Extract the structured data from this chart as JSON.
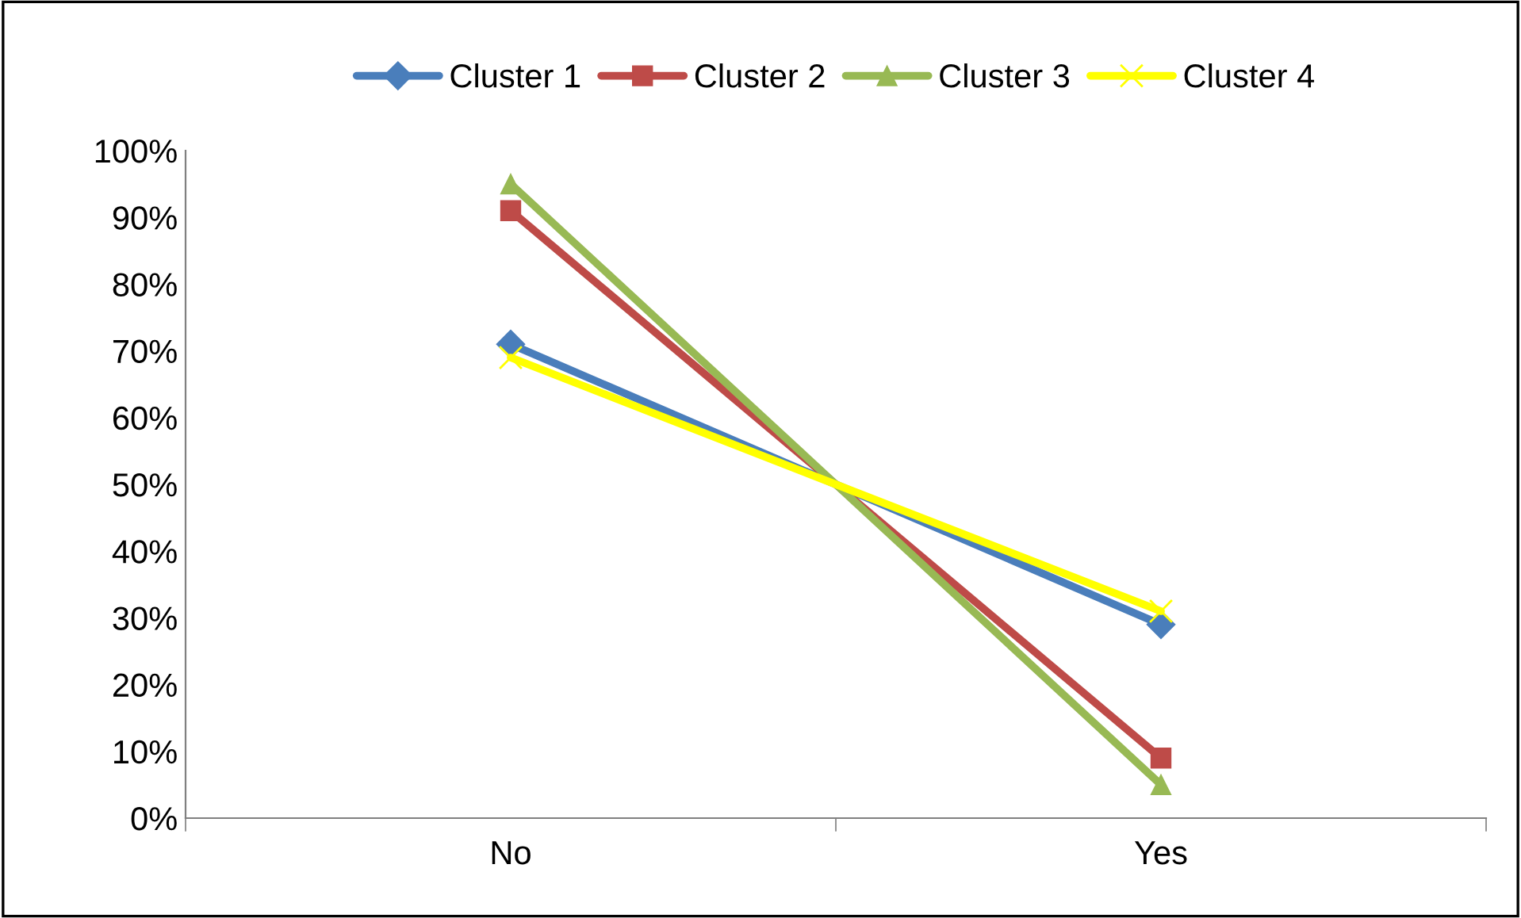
{
  "chart_data": {
    "type": "line",
    "categories": [
      "No",
      "Yes"
    ],
    "series": [
      {
        "name": "Cluster 1",
        "color": "#4a7ebb",
        "marker": "diamond",
        "values": [
          71,
          29
        ]
      },
      {
        "name": "Cluster 2",
        "color": "#be4b48",
        "marker": "square",
        "values": [
          91,
          9
        ]
      },
      {
        "name": "Cluster 3",
        "color": "#98b954",
        "marker": "triangle",
        "values": [
          95,
          5
        ]
      },
      {
        "name": "Cluster 4",
        "color": "#ffff00",
        "marker": "cross",
        "values": [
          69,
          31
        ]
      }
    ],
    "ylim": [
      0,
      100
    ],
    "yticks": [
      {
        "value": 0,
        "label": "0%"
      },
      {
        "value": 10,
        "label": "10%"
      },
      {
        "value": 20,
        "label": "20%"
      },
      {
        "value": 30,
        "label": "30%"
      },
      {
        "value": 40,
        "label": "40%"
      },
      {
        "value": 50,
        "label": "50%"
      },
      {
        "value": 60,
        "label": "60%"
      },
      {
        "value": 70,
        "label": "70%"
      },
      {
        "value": 80,
        "label": "80%"
      },
      {
        "value": 90,
        "label": "90%"
      },
      {
        "value": 100,
        "label": "100%"
      }
    ],
    "grid": false,
    "legend": "top"
  }
}
